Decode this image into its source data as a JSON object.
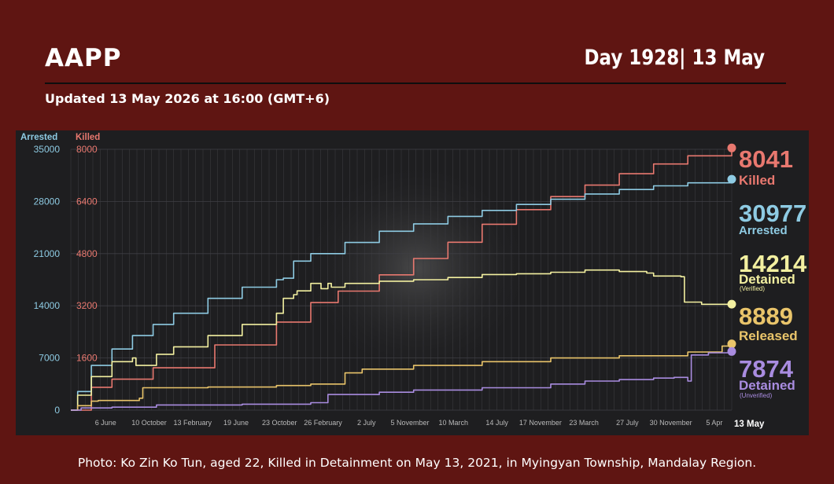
{
  "header": {
    "title": "AAPP",
    "day": "Day 1928| 13 May",
    "updated": "Updated 13 May 2026 at 16:00 (GMT+6)"
  },
  "caption": "Photo: Ko Zin Ko Tun, aged 22, Killed in Detainment on May 13, 2021, in Myingyan Township, Mandalay Region.",
  "colors": {
    "background": "#5f1512",
    "panel": "#1e1e20",
    "arrested": "#8ecbe3",
    "killed": "#e8786f",
    "detained_verified": "#f3f0a0",
    "released": "#e9c46a",
    "detained_unverified": "#a98ce0"
  },
  "chart_data": {
    "type": "line",
    "axis_titles": {
      "left": "Arrested",
      "right": "Killed"
    },
    "left_axis": {
      "ticks": [
        "0",
        "7000",
        "14000",
        "21000",
        "28000",
        "35000"
      ],
      "ylim": [
        0,
        35000
      ]
    },
    "right_axis": {
      "ticks": [
        "1600",
        "3200",
        "4800",
        "6400",
        "8000"
      ],
      "ylim": [
        0,
        8000
      ]
    },
    "x_tick_labels": [
      "6 June",
      "10 October",
      "13 February",
      "19 June",
      "23 October",
      "26 February",
      "2 July",
      "5 November",
      "10 March",
      "14 July",
      "17 November",
      "23 March",
      "27 July",
      "30 November",
      "5 Apr"
    ],
    "x_end_label": "13 May",
    "xlim": [
      0,
      1928
    ],
    "series": [
      {
        "name": "Killed",
        "axis": "right",
        "value": "8041",
        "label": "Killed",
        "x": [
          0,
          60,
          120,
          240,
          420,
          600,
          700,
          780,
          900,
          1000,
          1100,
          1200,
          1300,
          1400,
          1500,
          1600,
          1700,
          1800,
          1928
        ],
        "y": [
          0,
          700,
          950,
          1300,
          2000,
          2700,
          3300,
          3650,
          4150,
          4650,
          5150,
          5700,
          6150,
          6550,
          6900,
          7250,
          7550,
          7800,
          8041
        ]
      },
      {
        "name": "Arrested",
        "axis": "left",
        "value": "30977",
        "label": "Arrested",
        "x": [
          0,
          20,
          60,
          120,
          180,
          240,
          300,
          400,
          500,
          600,
          620,
          650,
          700,
          800,
          900,
          1000,
          1100,
          1200,
          1300,
          1400,
          1500,
          1600,
          1700,
          1800,
          1928
        ],
        "y": [
          0,
          2500,
          6000,
          8200,
          10000,
          11500,
          13000,
          15000,
          16500,
          17500,
          17700,
          20000,
          21000,
          22500,
          24000,
          25000,
          26000,
          26800,
          27600,
          28300,
          29000,
          29600,
          30100,
          30500,
          30977
        ]
      },
      {
        "name": "Detained",
        "axis": "left",
        "value": "14214",
        "label": "Detained",
        "sublabel": "(Verified)",
        "x": [
          0,
          20,
          60,
          120,
          180,
          190,
          250,
          300,
          400,
          500,
          600,
          620,
          650,
          660,
          700,
          730,
          750,
          760,
          800,
          900,
          1000,
          1100,
          1200,
          1300,
          1400,
          1500,
          1600,
          1680,
          1700,
          1780,
          1790,
          1840,
          1928
        ],
        "y": [
          0,
          2000,
          4500,
          6500,
          7000,
          6000,
          7500,
          8500,
          10000,
          11500,
          13000,
          15000,
          15500,
          16000,
          17000,
          16300,
          17000,
          16500,
          17000,
          17300,
          17500,
          17800,
          18200,
          18300,
          18500,
          18800,
          18600,
          18400,
          18000,
          17900,
          14500,
          14200,
          14214
        ]
      },
      {
        "name": "Released",
        "axis": "left",
        "value": "8889",
        "label": "Released",
        "x": [
          0,
          20,
          60,
          80,
          200,
          210,
          400,
          600,
          700,
          800,
          850,
          1000,
          1200,
          1400,
          1600,
          1800,
          1900,
          1928
        ],
        "y": [
          0,
          600,
          1200,
          1300,
          1600,
          3000,
          3100,
          3300,
          3500,
          5000,
          5500,
          6000,
          6500,
          7000,
          7300,
          7800,
          8600,
          8889
        ]
      },
      {
        "name": "Detained",
        "axis": "left",
        "value": "7874",
        "label": "Detained",
        "sublabel": "(Unverified)",
        "x": [
          0,
          30,
          120,
          250,
          500,
          700,
          750,
          900,
          1000,
          1200,
          1400,
          1500,
          1600,
          1700,
          1760,
          1780,
          1800,
          1810,
          1860,
          1928
        ],
        "y": [
          0,
          300,
          400,
          700,
          800,
          1000,
          2100,
          2400,
          2700,
          3000,
          3500,
          3900,
          4100,
          4300,
          4400,
          4400,
          3900,
          7400,
          7700,
          7874
        ]
      }
    ]
  }
}
